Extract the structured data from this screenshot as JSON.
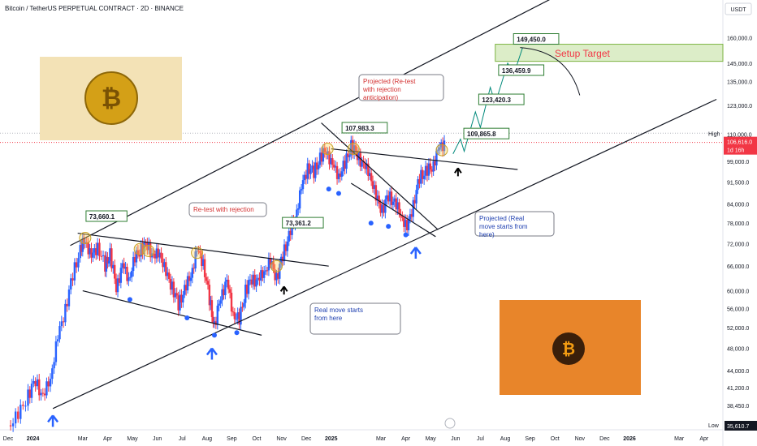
{
  "header": {
    "title": "Bitcoin / TetherUS PERPETUAL CONTRACT · 2D · BINANCE",
    "currency": "USDT"
  },
  "colors": {
    "up": "#2962ff",
    "down": "#f23645",
    "line": "#131722",
    "target_fill": "#dcedc8",
    "price_badge": "#f23645",
    "blue_arrow": "#2962ff"
  },
  "chart_data": {
    "type": "candlestick",
    "scale": "log",
    "ylim": [
      35000,
      175000
    ],
    "y_ticks": [
      "160,000.0",
      "145,000.0",
      "135,000.0",
      "123,000.0",
      "110,000.0",
      "99,000.0",
      "91,500.0",
      "84,000.0",
      "78,000.0",
      "72,000.0",
      "66,000.0",
      "60,000.0",
      "56,000.0",
      "52,000.0",
      "48,000.0",
      "44,000.0",
      "41,200.0",
      "38,450.0"
    ],
    "y_tick_values": [
      160000,
      145000,
      135000,
      123000,
      110000,
      99000,
      91500,
      84000,
      78000,
      72000,
      66000,
      60000,
      56000,
      52000,
      48000,
      44000,
      41200,
      38450
    ],
    "x_ticks": [
      "Dec",
      "2024",
      "Mar",
      "Apr",
      "May",
      "Jun",
      "Jul",
      "Aug",
      "Sep",
      "Oct",
      "Nov",
      "Dec",
      "2025",
      "Mar",
      "Apr",
      "May",
      "Jun",
      "Jul",
      "Aug",
      "Sep",
      "Oct",
      "Nov",
      "Dec",
      "2026",
      "Mar",
      "Apr"
    ],
    "x_tick_months": [
      0,
      1,
      3,
      4,
      5,
      6,
      7,
      8,
      9,
      10,
      11,
      12,
      13,
      15,
      16,
      17,
      18,
      19,
      20,
      21,
      22,
      23,
      24,
      25,
      27,
      28
    ],
    "price_path": [
      [
        0,
        35610
      ],
      [
        0.4,
        37000
      ],
      [
        0.8,
        40000
      ],
      [
        1.1,
        42500
      ],
      [
        1.4,
        39500
      ],
      [
        1.7,
        43000
      ],
      [
        2.0,
        50000
      ],
      [
        2.3,
        56000
      ],
      [
        2.6,
        64000
      ],
      [
        2.9,
        70000
      ],
      [
        3.1,
        73600
      ],
      [
        3.35,
        68000
      ],
      [
        3.6,
        71500
      ],
      [
        3.9,
        66000
      ],
      [
        4.1,
        69000
      ],
      [
        4.35,
        61000
      ],
      [
        4.6,
        66000
      ],
      [
        4.85,
        63000
      ],
      [
        5.1,
        68000
      ],
      [
        5.35,
        70500
      ],
      [
        5.6,
        72000
      ],
      [
        5.85,
        68000
      ],
      [
        6.1,
        70000
      ],
      [
        6.35,
        64000
      ],
      [
        6.6,
        61000
      ],
      [
        6.85,
        57000
      ],
      [
        7.1,
        60000
      ],
      [
        7.35,
        64000
      ],
      [
        7.6,
        70000
      ],
      [
        7.85,
        67000
      ],
      [
        8.1,
        58000
      ],
      [
        8.3,
        52000
      ],
      [
        8.55,
        59000
      ],
      [
        8.8,
        62000
      ],
      [
        9.05,
        55000
      ],
      [
        9.3,
        53500
      ],
      [
        9.55,
        60000
      ],
      [
        9.8,
        63000
      ],
      [
        10.05,
        62000
      ],
      [
        10.3,
        65000
      ],
      [
        10.55,
        67000
      ],
      [
        10.8,
        63000
      ],
      [
        11.05,
        69000
      ],
      [
        11.3,
        74000
      ],
      [
        11.55,
        80000
      ],
      [
        11.8,
        89000
      ],
      [
        12.05,
        97000
      ],
      [
        12.3,
        95000
      ],
      [
        12.55,
        100000
      ],
      [
        12.8,
        104000
      ],
      [
        13.05,
        97000
      ],
      [
        13.3,
        94000
      ],
      [
        13.55,
        98000
      ],
      [
        13.8,
        105000
      ],
      [
        14.05,
        102000
      ],
      [
        14.3,
        97000
      ],
      [
        14.55,
        95000
      ],
      [
        14.8,
        86000
      ],
      [
        15.05,
        82000
      ],
      [
        15.3,
        87000
      ],
      [
        15.55,
        84000
      ],
      [
        15.8,
        81000
      ],
      [
        16.05,
        76000
      ],
      [
        16.3,
        84000
      ],
      [
        16.55,
        93000
      ],
      [
        16.8,
        95000
      ],
      [
        17.05,
        97000
      ],
      [
        17.3,
        103000
      ],
      [
        17.55,
        106616
      ]
    ],
    "last_price": "106,616.0",
    "countdown": "1d 16h",
    "high_label": "High",
    "low_label": "Low",
    "low_price": "35,610.7",
    "callouts": [
      {
        "label": "73,660.1",
        "m": 3.2,
        "p": 79500
      },
      {
        "label": "107,983.3",
        "m": 13.5,
        "p": 112000
      },
      {
        "label": "73,361.2",
        "m": 11.1,
        "p": 77500
      },
      {
        "label": "109,865.8",
        "m": 18.4,
        "p": 109500
      },
      {
        "label": "123,420.3",
        "m": 19.0,
        "p": 125000
      },
      {
        "label": "136,459.9",
        "m": 19.8,
        "p": 140000
      },
      {
        "label": "149,450.0",
        "m": 20.4,
        "p": 158000
      }
    ],
    "annotations": {
      "target": "Setup Target",
      "projected_retest": "Projected (Re-test with rejection anticipation)",
      "retest": "Re-test with rejection",
      "real_move": "Real move starts from here",
      "projected_real": "Projected (Real move starts from here)"
    }
  }
}
